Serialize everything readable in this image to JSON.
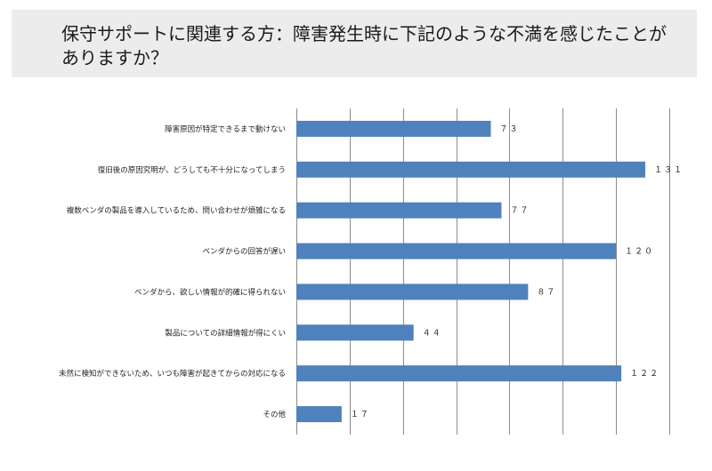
{
  "title": "保守サポートに関連する方：障害発生時に下記のような不満を感じたことがありますか？",
  "colors": {
    "bar": "#4f81bd",
    "grid": "#8c8c8c",
    "title_bg": "#ececec"
  },
  "chart_data": {
    "type": "bar",
    "orientation": "horizontal",
    "categories": [
      "障害原因が特定できるまで動けない",
      "復旧後の原因究明が、どうしても不十分になってしまう",
      "複数ベンダの製品を導入しているため、問い合わせが煩雑になる",
      "ベンダからの回答が遅い",
      "ベンダから、欲しい情報が的確に得られない",
      "製品についての詳細情報が得にくい",
      "未然に検知ができないため、いつも障害が起きてからの対応になる",
      "その他"
    ],
    "values": [
      73,
      131,
      77,
      120,
      87,
      44,
      122,
      17
    ],
    "value_labels": [
      "７３",
      "１３１",
      "７７",
      "１２０",
      "８７",
      "４４",
      "１２２",
      "１７"
    ],
    "xlim": [
      0,
      140
    ],
    "grid": true,
    "grid_step": 20
  }
}
